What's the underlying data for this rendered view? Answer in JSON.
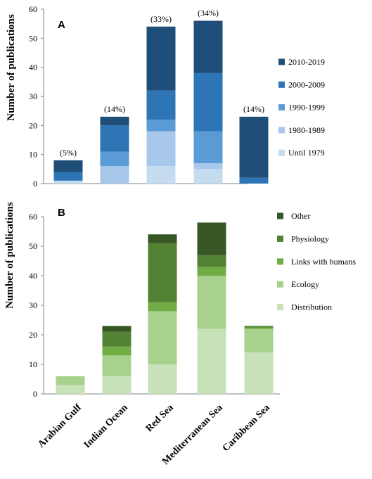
{
  "chart_data": [
    {
      "panel_label": "A",
      "type": "bar",
      "stacked": true,
      "ylabel": "Number of publications",
      "ylim": [
        0,
        60
      ],
      "yticks": [
        0,
        10,
        20,
        30,
        40,
        50,
        60
      ],
      "legend_position": "right",
      "categories": [
        "Arabian Gulf",
        "Indian Ocean",
        "Red Sea",
        "Mediterranean Sea",
        "Caribbean Sea"
      ],
      "series": [
        {
          "name": "Until 1979",
          "color": "#c5dcf0",
          "values": [
            1,
            0,
            6,
            5,
            0
          ]
        },
        {
          "name": "1980-1989",
          "color": "#a7c8ea",
          "values": [
            0,
            6,
            12,
            2,
            0
          ]
        },
        {
          "name": "1990-1999",
          "color": "#5b9bd5",
          "values": [
            0,
            5,
            4,
            11,
            0
          ]
        },
        {
          "name": "2000-2009",
          "color": "#2e75b6",
          "values": [
            3,
            9,
            10,
            20,
            2
          ]
        },
        {
          "name": "2010-2019",
          "color": "#1f4e79",
          "values": [
            4,
            3,
            22,
            18,
            21
          ]
        }
      ],
      "percent_labels": [
        "(5%)",
        "(14%)",
        "(33%)",
        "(34%)",
        "(14%)"
      ]
    },
    {
      "panel_label": "B",
      "type": "bar",
      "stacked": true,
      "ylabel": "Number of publications",
      "ylim": [
        0,
        60
      ],
      "yticks": [
        0,
        10,
        20,
        30,
        40,
        50,
        60
      ],
      "legend_position": "right",
      "categories": [
        "Arabian Gulf",
        "Indian Ocean",
        "Red Sea",
        "Mediterranean Sea",
        "Caribbean Sea"
      ],
      "series": [
        {
          "name": "Distribution",
          "color": "#c7e2b8",
          "values": [
            3,
            6,
            10,
            22,
            14
          ]
        },
        {
          "name": "Ecology",
          "color": "#a9d18e",
          "values": [
            3,
            7,
            18,
            18,
            8
          ]
        },
        {
          "name": "Links with humans",
          "color": "#70ad47",
          "values": [
            0,
            3,
            3,
            3,
            0.5
          ]
        },
        {
          "name": "Physiology",
          "color": "#548235",
          "values": [
            0,
            5,
            20,
            4,
            0.5
          ]
        },
        {
          "name": "Other",
          "color": "#375623",
          "values": [
            0,
            2,
            3,
            11,
            0
          ]
        }
      ]
    }
  ]
}
